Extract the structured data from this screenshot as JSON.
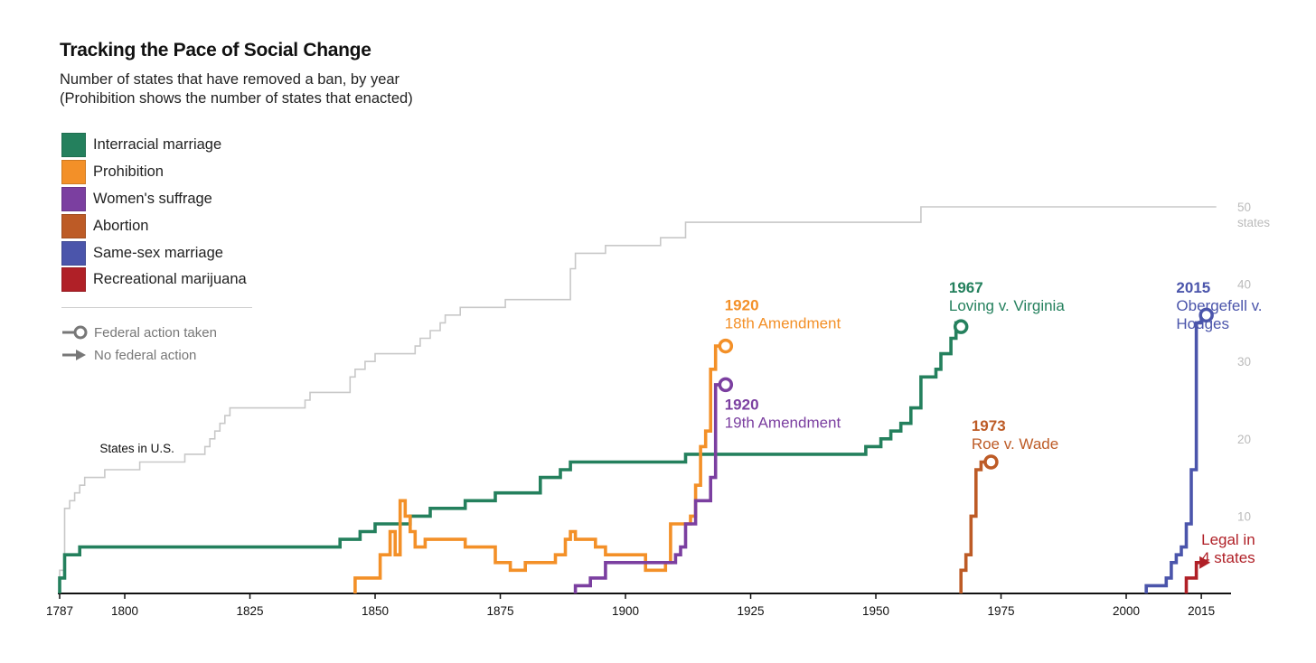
{
  "chart_data": {
    "type": "line",
    "step": true,
    "title": "Tracking the Pace of Social Change",
    "subtitle_lines": [
      "Number of states that have removed a ban, by year",
      "(Prohibition shows the number of states that enacted)"
    ],
    "xlim": [
      1787,
      2018
    ],
    "ylim": [
      0,
      50
    ],
    "x_ticks": [
      1787,
      1800,
      1825,
      1850,
      1875,
      1900,
      1925,
      1950,
      1975,
      2000,
      2015
    ],
    "y_ticks": [
      10,
      20,
      30,
      40,
      50
    ],
    "y_tick_labels": [
      "10",
      "20",
      "30",
      "40",
      "50"
    ],
    "y_unit_label": "states",
    "y_axis_position": "right",
    "grid": false,
    "legend_position": "top-left",
    "series": [
      {
        "name": "Interracial marriage",
        "color": "#24805d",
        "end": "circle",
        "points": [
          [
            1787,
            0
          ],
          [
            1787,
            2
          ],
          [
            1788,
            2
          ],
          [
            1788,
            5
          ],
          [
            1791,
            5
          ],
          [
            1791,
            6
          ],
          [
            1843,
            6
          ],
          [
            1843,
            7
          ],
          [
            1847,
            7
          ],
          [
            1847,
            8
          ],
          [
            1850,
            8
          ],
          [
            1850,
            9
          ],
          [
            1857,
            9
          ],
          [
            1857,
            10
          ],
          [
            1861,
            10
          ],
          [
            1861,
            11
          ],
          [
            1868,
            11
          ],
          [
            1868,
            12
          ],
          [
            1874,
            12
          ],
          [
            1874,
            13
          ],
          [
            1883,
            13
          ],
          [
            1883,
            15
          ],
          [
            1887,
            15
          ],
          [
            1887,
            16
          ],
          [
            1889,
            16
          ],
          [
            1889,
            17
          ],
          [
            1912,
            17
          ],
          [
            1912,
            18
          ],
          [
            1948,
            18
          ],
          [
            1948,
            19
          ],
          [
            1951,
            19
          ],
          [
            1951,
            20
          ],
          [
            1953,
            20
          ],
          [
            1953,
            21
          ],
          [
            1955,
            21
          ],
          [
            1955,
            22
          ],
          [
            1957,
            22
          ],
          [
            1957,
            24
          ],
          [
            1959,
            24
          ],
          [
            1959,
            28
          ],
          [
            1962,
            28
          ],
          [
            1962,
            29
          ],
          [
            1963,
            29
          ],
          [
            1963,
            31
          ],
          [
            1965,
            31
          ],
          [
            1965,
            33
          ],
          [
            1966,
            33
          ],
          [
            1966,
            35
          ],
          [
            1967,
            35
          ],
          [
            1967,
            34.5
          ]
        ]
      },
      {
        "name": "Prohibition",
        "color": "#f39028",
        "end": "circle",
        "points": [
          [
            1846,
            0
          ],
          [
            1846,
            2
          ],
          [
            1851,
            2
          ],
          [
            1851,
            5
          ],
          [
            1853,
            5
          ],
          [
            1853,
            8
          ],
          [
            1854,
            8
          ],
          [
            1854,
            5
          ],
          [
            1855,
            5
          ],
          [
            1855,
            12
          ],
          [
            1856,
            12
          ],
          [
            1856,
            10
          ],
          [
            1857,
            10
          ],
          [
            1857,
            8
          ],
          [
            1858,
            8
          ],
          [
            1858,
            6
          ],
          [
            1860,
            6
          ],
          [
            1860,
            7
          ],
          [
            1868,
            7
          ],
          [
            1868,
            6
          ],
          [
            1874,
            6
          ],
          [
            1874,
            4
          ],
          [
            1877,
            4
          ],
          [
            1877,
            3
          ],
          [
            1880,
            3
          ],
          [
            1880,
            4
          ],
          [
            1886,
            4
          ],
          [
            1886,
            5
          ],
          [
            1888,
            5
          ],
          [
            1888,
            7
          ],
          [
            1889,
            7
          ],
          [
            1889,
            8
          ],
          [
            1890,
            8
          ],
          [
            1890,
            7
          ],
          [
            1894,
            7
          ],
          [
            1894,
            6
          ],
          [
            1896,
            6
          ],
          [
            1896,
            5
          ],
          [
            1904,
            5
          ],
          [
            1904,
            3
          ],
          [
            1908,
            3
          ],
          [
            1908,
            4
          ],
          [
            1909,
            4
          ],
          [
            1909,
            9
          ],
          [
            1913,
            9
          ],
          [
            1913,
            10
          ],
          [
            1914,
            10
          ],
          [
            1914,
            14
          ],
          [
            1915,
            14
          ],
          [
            1915,
            19
          ],
          [
            1916,
            19
          ],
          [
            1916,
            21
          ],
          [
            1917,
            21
          ],
          [
            1917,
            29
          ],
          [
            1918,
            29
          ],
          [
            1918,
            32
          ],
          [
            1920,
            32
          ],
          [
            1920,
            32
          ]
        ]
      },
      {
        "name": "Women's suffrage",
        "color": "#7b3fa0",
        "end": "circle",
        "points": [
          [
            1890,
            0
          ],
          [
            1890,
            1
          ],
          [
            1893,
            1
          ],
          [
            1893,
            2
          ],
          [
            1896,
            2
          ],
          [
            1896,
            4
          ],
          [
            1910,
            4
          ],
          [
            1910,
            5
          ],
          [
            1911,
            5
          ],
          [
            1911,
            6
          ],
          [
            1912,
            6
          ],
          [
            1912,
            9
          ],
          [
            1914,
            9
          ],
          [
            1914,
            12
          ],
          [
            1917,
            12
          ],
          [
            1917,
            15
          ],
          [
            1918,
            15
          ],
          [
            1918,
            27
          ],
          [
            1920,
            27
          ],
          [
            1920,
            27
          ]
        ]
      },
      {
        "name": "Abortion",
        "color": "#bd5b26",
        "end": "circle",
        "points": [
          [
            1967,
            0
          ],
          [
            1967,
            3
          ],
          [
            1968,
            3
          ],
          [
            1968,
            5
          ],
          [
            1969,
            5
          ],
          [
            1969,
            10
          ],
          [
            1970,
            10
          ],
          [
            1970,
            16
          ],
          [
            1971,
            16
          ],
          [
            1971,
            17
          ],
          [
            1973,
            17
          ],
          [
            1973,
            17
          ]
        ]
      },
      {
        "name": "Same-sex marriage",
        "color": "#4b55ab",
        "end": "circle",
        "points": [
          [
            2004,
            0
          ],
          [
            2004,
            1
          ],
          [
            2008,
            1
          ],
          [
            2008,
            2
          ],
          [
            2009,
            2
          ],
          [
            2009,
            4
          ],
          [
            2010,
            4
          ],
          [
            2010,
            5
          ],
          [
            2011,
            5
          ],
          [
            2011,
            6
          ],
          [
            2012,
            6
          ],
          [
            2012,
            9
          ],
          [
            2013,
            9
          ],
          [
            2013,
            16
          ],
          [
            2014,
            16
          ],
          [
            2014,
            35
          ],
          [
            2015,
            35
          ],
          [
            2015,
            36
          ],
          [
            2016,
            36
          ]
        ]
      },
      {
        "name": "Recreational marijuana",
        "color": "#b02027",
        "end": "arrow",
        "points": [
          [
            2012,
            0
          ],
          [
            2012,
            2
          ],
          [
            2014,
            2
          ],
          [
            2014,
            4
          ],
          [
            2015,
            4
          ]
        ]
      }
    ],
    "states_in_us": {
      "name": "States in U.S.",
      "color": "#c8c8c8",
      "points": [
        [
          1787,
          0
        ],
        [
          1787,
          3
        ],
        [
          1788,
          3
        ],
        [
          1788,
          11
        ],
        [
          1789,
          11
        ],
        [
          1789,
          12
        ],
        [
          1790,
          12
        ],
        [
          1790,
          13
        ],
        [
          1791,
          13
        ],
        [
          1791,
          14
        ],
        [
          1792,
          14
        ],
        [
          1792,
          15
        ],
        [
          1796,
          15
        ],
        [
          1796,
          16
        ],
        [
          1803,
          16
        ],
        [
          1803,
          17
        ],
        [
          1812,
          17
        ],
        [
          1812,
          18
        ],
        [
          1816,
          18
        ],
        [
          1816,
          19
        ],
        [
          1817,
          19
        ],
        [
          1817,
          20
        ],
        [
          1818,
          20
        ],
        [
          1818,
          21
        ],
        [
          1819,
          21
        ],
        [
          1819,
          22
        ],
        [
          1820,
          22
        ],
        [
          1820,
          23
        ],
        [
          1821,
          23
        ],
        [
          1821,
          24
        ],
        [
          1836,
          24
        ],
        [
          1836,
          25
        ],
        [
          1837,
          25
        ],
        [
          1837,
          26
        ],
        [
          1845,
          26
        ],
        [
          1845,
          28
        ],
        [
          1846,
          28
        ],
        [
          1846,
          29
        ],
        [
          1848,
          29
        ],
        [
          1848,
          30
        ],
        [
          1850,
          30
        ],
        [
          1850,
          31
        ],
        [
          1858,
          31
        ],
        [
          1858,
          32
        ],
        [
          1859,
          32
        ],
        [
          1859,
          33
        ],
        [
          1861,
          33
        ],
        [
          1861,
          34
        ],
        [
          1863,
          34
        ],
        [
          1863,
          35
        ],
        [
          1864,
          35
        ],
        [
          1864,
          36
        ],
        [
          1867,
          36
        ],
        [
          1867,
          37
        ],
        [
          1876,
          37
        ],
        [
          1876,
          38
        ],
        [
          1889,
          38
        ],
        [
          1889,
          42
        ],
        [
          1890,
          42
        ],
        [
          1890,
          44
        ],
        [
          1896,
          44
        ],
        [
          1896,
          45
        ],
        [
          1907,
          45
        ],
        [
          1907,
          46
        ],
        [
          1912,
          46
        ],
        [
          1912,
          48
        ],
        [
          1959,
          48
        ],
        [
          1959,
          50
        ],
        [
          2018,
          50
        ]
      ]
    },
    "annotations": [
      {
        "series": "Prohibition",
        "year": "1920",
        "text": "18th Amendment",
        "color": "#f39028"
      },
      {
        "series": "Women's suffrage",
        "year": "1920",
        "text": "19th Amendment",
        "color": "#7b3fa0"
      },
      {
        "series": "Interracial marriage",
        "year": "1967",
        "text": "Loving v. Virginia",
        "color": "#24805d"
      },
      {
        "series": "Abortion",
        "year": "1973",
        "text": "Roe v. Wade",
        "color": "#bd5b26"
      },
      {
        "series": "Same-sex marriage",
        "year": "2015",
        "text": "Obergefell v.",
        "text2": "Hodges",
        "color": "#4b55ab"
      },
      {
        "series": "Recreational marijuana",
        "year": "",
        "text": "Legal in",
        "text2": "4 states",
        "color": "#b02027"
      }
    ],
    "states_label": "States in U.S."
  },
  "legend": {
    "items": [
      {
        "label": "Interracial marriage",
        "color": "#24805d"
      },
      {
        "label": "Prohibition",
        "color": "#f39028"
      },
      {
        "label": "Women's suffrage",
        "color": "#7b3fa0"
      },
      {
        "label": "Abortion",
        "color": "#bd5b26"
      },
      {
        "label": "Same-sex marriage",
        "color": "#4b55ab"
      },
      {
        "label": "Recreational marijuana",
        "color": "#b02027"
      }
    ],
    "key_federal": "Federal action taken",
    "key_no_federal": "No federal action",
    "key_color": "#777777"
  }
}
